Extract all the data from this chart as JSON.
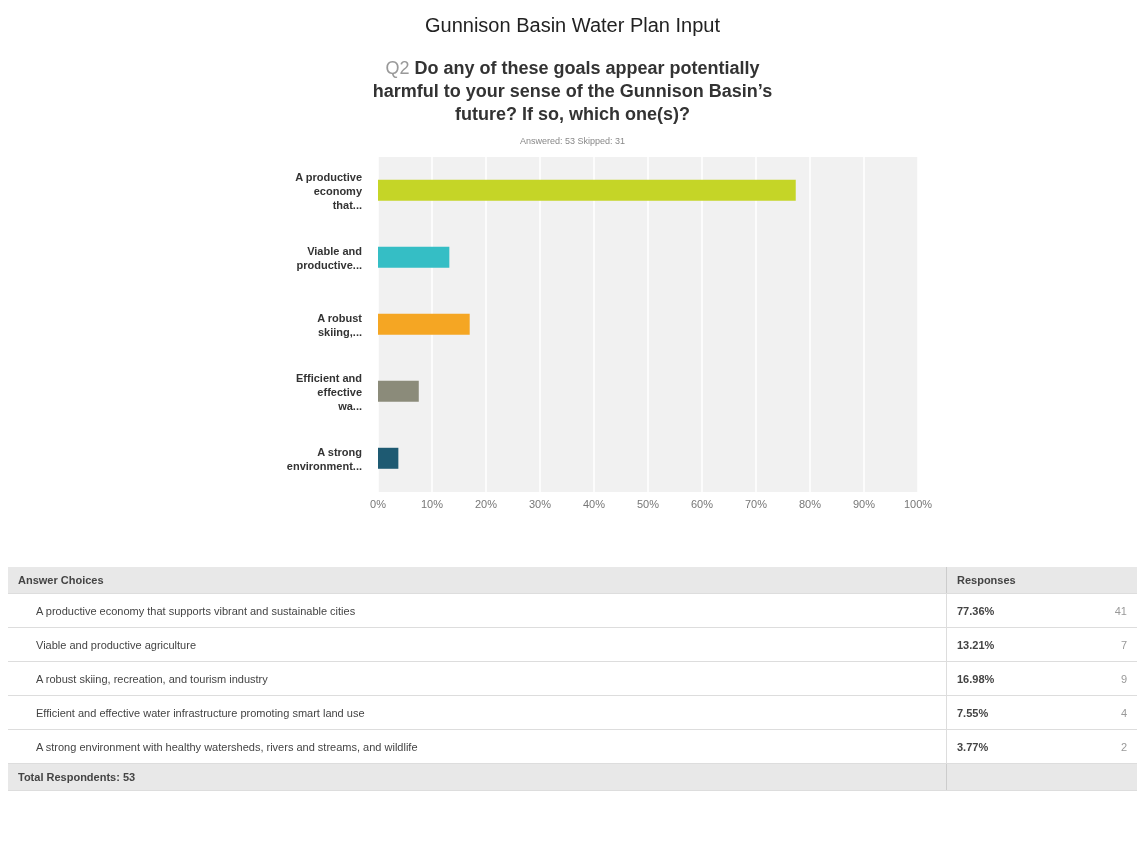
{
  "chart_data": {
    "type": "bar",
    "orientation": "horizontal",
    "title": "Gunnison Basin Water Plan Input",
    "subtitle": "Q2 Do any of these goals appear potentially harmful to your sense of the Gunnison Basin’s future? If so, which one(s)?",
    "categories": [
      "A productive economy that...",
      "Viable and productive...",
      "A robust skiing,...",
      "Efficient and effective wa...",
      "A strong environment..."
    ],
    "values": [
      77.36,
      13.21,
      16.98,
      7.55,
      3.77
    ],
    "colors": [
      "#c5d527",
      "#35bec5",
      "#f5a623",
      "#8b8b7a",
      "#1e5a72"
    ],
    "xlim": [
      0,
      100
    ],
    "xticks": [
      {
        "value": 0,
        "label": "0%"
      },
      {
        "value": 10,
        "label": "10%"
      },
      {
        "value": 20,
        "label": "20%"
      },
      {
        "value": 30,
        "label": "30%"
      },
      {
        "value": 40,
        "label": "40%"
      },
      {
        "value": 50,
        "label": "50%"
      },
      {
        "value": 60,
        "label": "60%"
      },
      {
        "value": 70,
        "label": "70%"
      },
      {
        "value": 80,
        "label": "80%"
      },
      {
        "value": 90,
        "label": "90%"
      },
      {
        "value": 100,
        "label": "100%"
      }
    ],
    "grid": "x",
    "annotations": [
      "Answered: 53    Skipped: 31",
      "Answer Choices",
      "Responses",
      "A productive economy that supports vibrant and sustainable cities",
      "Viable and productive agriculture",
      "A robust skiing, recreation, and tourism industry",
      "Efficient and effective water infrastructure promoting smart land use",
      "A strong environment with healthy watersheds, rivers and streams, and wildlife",
      "41",
      "7",
      "9",
      "4",
      "2",
      "77.36%",
      "13.21%",
      "16.98%",
      "7.55%",
      "3.77%",
      "Total Respondents: 53"
    ]
  }
}
